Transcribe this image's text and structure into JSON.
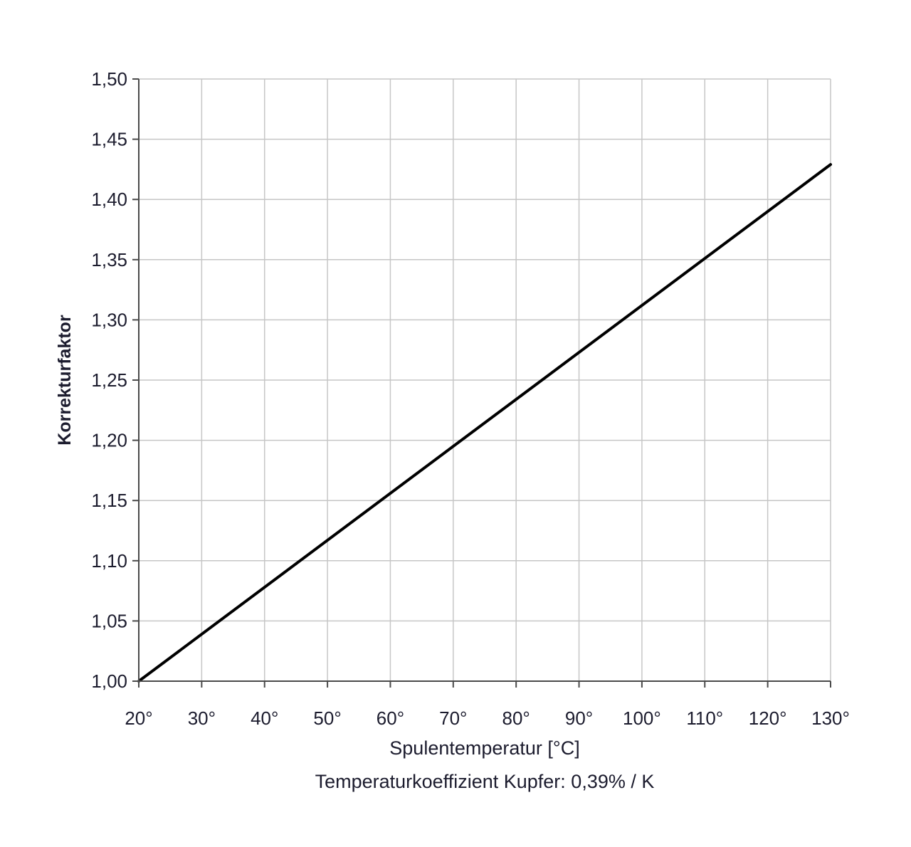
{
  "chart_data": {
    "type": "line",
    "xlabel": "Spulentemperatur [°C]",
    "ylabel": "Korrekturfaktor",
    "note": "Temperaturkoeffizient Kupfer:  0,39% / K",
    "x_tick_labels": [
      "20°",
      "30°",
      "40°",
      "50°",
      "60°",
      "70°",
      "80°",
      "90°",
      "100°",
      "110°",
      "120°",
      "130°"
    ],
    "y_tick_labels": [
      "1,00",
      "1,05",
      "1,10",
      "1,15",
      "1,20",
      "1,25",
      "1,30",
      "1,35",
      "1,40",
      "1,45",
      "1,50"
    ],
    "xlim": [
      20,
      130
    ],
    "ylim": [
      1.0,
      1.5
    ],
    "x_ticks": [
      20,
      30,
      40,
      50,
      60,
      70,
      80,
      90,
      100,
      110,
      120,
      130
    ],
    "y_ticks": [
      1.0,
      1.05,
      1.1,
      1.15,
      1.2,
      1.25,
      1.3,
      1.35,
      1.4,
      1.45,
      1.5
    ],
    "grid": true,
    "series": [
      {
        "x": [
          20,
          130
        ],
        "y": [
          1.0,
          1.429
        ],
        "color": "#000000"
      }
    ],
    "colors": {
      "grid": "#c6c6c6",
      "axis": "#4a4a4a",
      "line": "#000000"
    }
  }
}
